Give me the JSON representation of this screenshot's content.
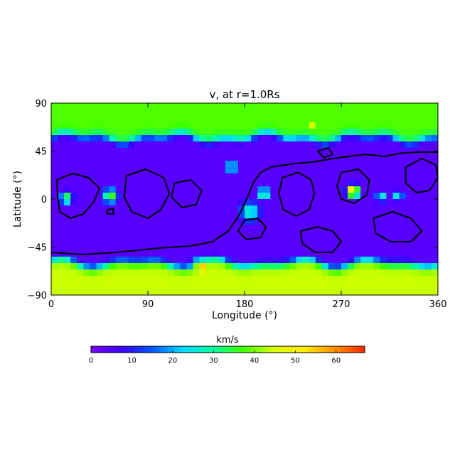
{
  "chart_data": {
    "type": "heatmap",
    "title": "v, at r=1.0Rs",
    "xlabel": "Longitude (°)",
    "ylabel": "Latitude (°)",
    "xlim": [
      0,
      360
    ],
    "ylim": [
      -90,
      90
    ],
    "x_ticks": [
      {
        "value": 0,
        "label": "0"
      },
      {
        "value": 90,
        "label": "90"
      },
      {
        "value": 180,
        "label": "180"
      },
      {
        "value": 270,
        "label": "270"
      },
      {
        "value": 360,
        "label": "360"
      }
    ],
    "y_ticks": [
      {
        "value": 90,
        "label": "90"
      },
      {
        "value": 45,
        "label": "45"
      },
      {
        "value": 0,
        "label": "0"
      },
      {
        "value": -45,
        "label": "−45"
      },
      {
        "value": -90,
        "label": "−90"
      }
    ],
    "colorbar": {
      "label": "km/s",
      "range": [
        0,
        67
      ],
      "ticks": [
        {
          "value": 0,
          "label": "0"
        },
        {
          "value": 10,
          "label": "10"
        },
        {
          "value": 20,
          "label": "20"
        },
        {
          "value": 30,
          "label": "30"
        },
        {
          "value": 40,
          "label": "40"
        },
        {
          "value": 50,
          "label": "50"
        },
        {
          "value": 60,
          "label": "60"
        }
      ],
      "colormap": [
        "#7a00ff",
        "#3a00ff",
        "#0055ff",
        "#00d8ff",
        "#00ffa0",
        "#40ff00",
        "#d8ff00",
        "#ffee00",
        "#ff9000",
        "#ff2a00"
      ]
    },
    "background_value": 4,
    "polar_bands": {
      "north": {
        "boundary_lat": 57,
        "value": 38
      },
      "south": {
        "boundary_lat": -60,
        "value": 44
      }
    },
    "features": [
      {
        "lon": 14,
        "lat": 1,
        "value": 38,
        "radius_deg": 6
      },
      {
        "lon": 55,
        "lat": 3,
        "value": 40,
        "radius_deg": 7
      },
      {
        "lon": 198,
        "lat": 5,
        "value": 36,
        "radius_deg": 6
      },
      {
        "lon": 185,
        "lat": -12,
        "value": 28,
        "radius_deg": 10
      },
      {
        "lon": 168,
        "lat": 30,
        "value": 30,
        "radius_deg": 6
      },
      {
        "lon": 281,
        "lat": 7,
        "value": 62,
        "radius_deg": 6
      },
      {
        "lon": 307,
        "lat": 2,
        "value": 30,
        "radius_deg": 5
      },
      {
        "lon": 323,
        "lat": 3,
        "value": 28,
        "radius_deg": 5
      },
      {
        "lon": 140,
        "lat": -65,
        "value": 58,
        "radius_deg": 9
      },
      {
        "lon": 30,
        "lat": -78,
        "value": 50,
        "radius_deg": 8
      },
      {
        "lon": 245,
        "lat": 68,
        "value": 48,
        "radius_deg": 8
      },
      {
        "lon": 30,
        "lat": 63,
        "value": 44,
        "radius_deg": 6
      }
    ],
    "contours": [
      {
        "name": "polarity-inversion-line",
        "points": [
          [
            0,
            -50
          ],
          [
            30,
            -52
          ],
          [
            60,
            -50
          ],
          [
            100,
            -46
          ],
          [
            130,
            -44
          ],
          [
            150,
            -40
          ],
          [
            165,
            -30
          ],
          [
            175,
            -15
          ],
          [
            182,
            0
          ],
          [
            188,
            15
          ],
          [
            195,
            25
          ],
          [
            205,
            30
          ],
          [
            225,
            33
          ],
          [
            245,
            35
          ],
          [
            262,
            38
          ],
          [
            278,
            40
          ],
          [
            292,
            42
          ],
          [
            310,
            40
          ],
          [
            325,
            43
          ],
          [
            340,
            44
          ],
          [
            360,
            44
          ]
        ]
      },
      {
        "name": "closed-contour-1",
        "points": [
          [
            5,
            18
          ],
          [
            20,
            24
          ],
          [
            35,
            20
          ],
          [
            45,
            10
          ],
          [
            40,
            -2
          ],
          [
            30,
            -14
          ],
          [
            18,
            -18
          ],
          [
            8,
            -12
          ],
          [
            6,
            2
          ],
          [
            5,
            18
          ]
        ]
      },
      {
        "name": "closed-contour-2",
        "points": [
          [
            70,
            22
          ],
          [
            88,
            28
          ],
          [
            105,
            20
          ],
          [
            110,
            5
          ],
          [
            102,
            -10
          ],
          [
            90,
            -18
          ],
          [
            75,
            -12
          ],
          [
            68,
            2
          ],
          [
            70,
            22
          ]
        ]
      },
      {
        "name": "closed-contour-3",
        "points": [
          [
            115,
            15
          ],
          [
            130,
            18
          ],
          [
            140,
            8
          ],
          [
            135,
            -5
          ],
          [
            122,
            -8
          ],
          [
            112,
            2
          ],
          [
            115,
            15
          ]
        ]
      },
      {
        "name": "closed-contour-4",
        "points": [
          [
            180,
            -20
          ],
          [
            192,
            -18
          ],
          [
            200,
            -26
          ],
          [
            195,
            -36
          ],
          [
            182,
            -38
          ],
          [
            174,
            -30
          ],
          [
            180,
            -20
          ]
        ]
      },
      {
        "name": "closed-contour-5",
        "points": [
          [
            215,
            20
          ],
          [
            230,
            25
          ],
          [
            242,
            18
          ],
          [
            245,
            5
          ],
          [
            240,
            -10
          ],
          [
            228,
            -16
          ],
          [
            216,
            -10
          ],
          [
            212,
            5
          ],
          [
            215,
            20
          ]
        ]
      },
      {
        "name": "closed-contour-6",
        "points": [
          [
            232,
            -30
          ],
          [
            248,
            -26
          ],
          [
            262,
            -30
          ],
          [
            270,
            -40
          ],
          [
            262,
            -50
          ],
          [
            246,
            -50
          ],
          [
            234,
            -42
          ],
          [
            232,
            -30
          ]
        ]
      },
      {
        "name": "closed-contour-7",
        "points": [
          [
            270,
            25
          ],
          [
            286,
            28
          ],
          [
            296,
            18
          ],
          [
            294,
            4
          ],
          [
            282,
            -4
          ],
          [
            270,
            0
          ],
          [
            266,
            12
          ],
          [
            270,
            25
          ]
        ]
      },
      {
        "name": "closed-contour-8",
        "points": [
          [
            300,
            -18
          ],
          [
            318,
            -12
          ],
          [
            335,
            -18
          ],
          [
            345,
            -30
          ],
          [
            335,
            -40
          ],
          [
            316,
            -40
          ],
          [
            302,
            -32
          ],
          [
            300,
            -18
          ]
        ]
      },
      {
        "name": "closed-contour-9",
        "points": [
          [
            330,
            30
          ],
          [
            345,
            38
          ],
          [
            358,
            32
          ],
          [
            360,
            20
          ],
          [
            352,
            8
          ],
          [
            340,
            6
          ],
          [
            330,
            15
          ],
          [
            330,
            30
          ]
        ]
      },
      {
        "name": "closed-contour-10",
        "points": [
          [
            248,
            45
          ],
          [
            258,
            48
          ],
          [
            262,
            42
          ],
          [
            254,
            39
          ],
          [
            248,
            45
          ]
        ]
      },
      {
        "name": "closed-contour-11",
        "points": [
          [
            52,
            -10
          ],
          [
            58,
            -9
          ],
          [
            58,
            -14
          ],
          [
            52,
            -14
          ],
          [
            52,
            -10
          ]
        ]
      }
    ]
  }
}
